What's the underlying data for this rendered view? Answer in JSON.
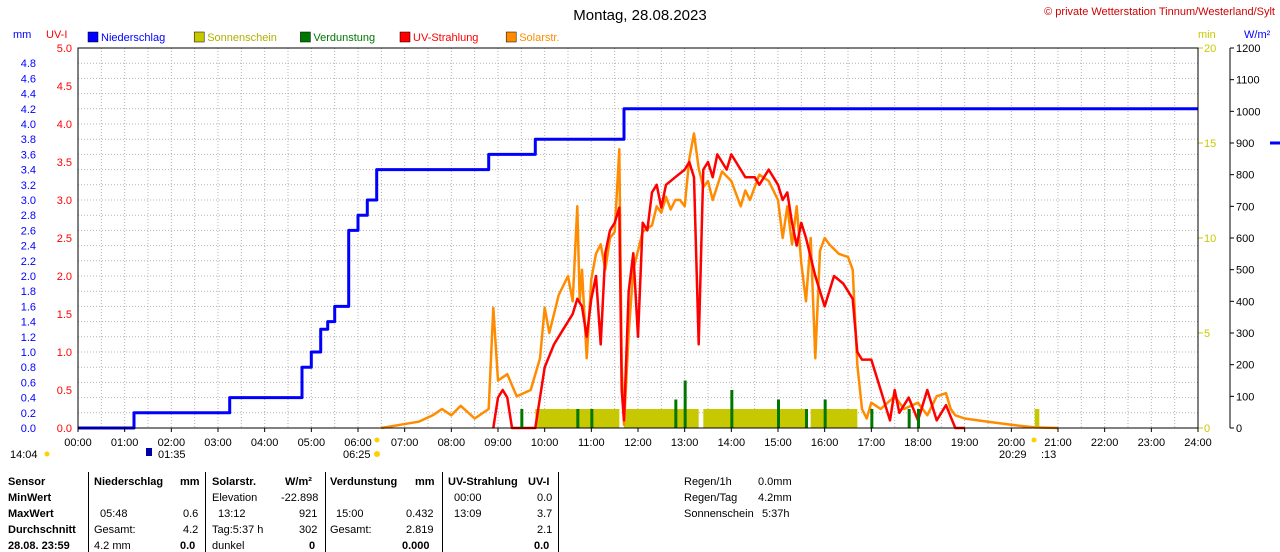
{
  "header": {
    "title": "Montag, 28.08.2023",
    "copyright": "© private Wetterstation Tinnum/Westerland/Sylt"
  },
  "legend": [
    {
      "label": "Niederschlag",
      "color": "#0000ff"
    },
    {
      "label": "Sonnenschein",
      "color": "#c8c800"
    },
    {
      "label": "Verdunstung",
      "color": "#007800"
    },
    {
      "label": "UV-Strahlung",
      "color": "#ff0000"
    },
    {
      "label": "Solarstr.",
      "color": "#ff8c00"
    }
  ],
  "axes": {
    "left_mm_unit": "mm",
    "left_uv_unit": "UV-I",
    "right_min_unit": "min",
    "right_w_unit": "W/m²",
    "x_ticks": [
      "00:00",
      "01:00",
      "02:00",
      "03:00",
      "04:00",
      "05:00",
      "06:00",
      "07:00",
      "08:00",
      "09:00",
      "10:00",
      "11:00",
      "12:00",
      "13:00",
      "14:00",
      "15:00",
      "16:00",
      "17:00",
      "18:00",
      "19:00",
      "20:00",
      "21:00",
      "22:00",
      "23:00",
      "24:00"
    ],
    "mm_ticks": [
      "0.0",
      "0.2",
      "0.4",
      "0.6",
      "0.8",
      "1.0",
      "1.2",
      "1.4",
      "1.6",
      "1.8",
      "2.0",
      "2.2",
      "2.4",
      "2.6",
      "2.8",
      "3.0",
      "3.2",
      "3.4",
      "3.6",
      "3.8",
      "4.0",
      "4.2",
      "4.4",
      "4.6",
      "4.8"
    ],
    "uv_ticks": [
      "0.0",
      "0.5",
      "1.0",
      "1.5",
      "2.0",
      "2.5",
      "3.0",
      "3.5",
      "4.0",
      "4.5",
      "5.0"
    ],
    "min_ticks": [
      "0",
      "5",
      "10",
      "15",
      "20"
    ],
    "w_ticks": [
      "0",
      "100",
      "200",
      "300",
      "400",
      "500",
      "600",
      "700",
      "800",
      "900",
      "1000",
      "1100",
      "1200"
    ],
    "sun_markers": {
      "moonrise": "14:04",
      "moonset": "01:35",
      "sunrise": "06:25",
      "sunset": "20:29",
      "sunset_suffix": ":13"
    }
  },
  "chart_data": {
    "type": "line",
    "x_unit": "hour of day",
    "xlim": [
      0,
      24
    ],
    "series": [
      {
        "name": "Niederschlag",
        "axis": "mm",
        "ylim": [
          0,
          5.0
        ],
        "color": "#0000ff",
        "step": [
          [
            0,
            0
          ],
          [
            1.2,
            0
          ],
          [
            1.2,
            0.2
          ],
          [
            3.25,
            0.2
          ],
          [
            3.25,
            0.4
          ],
          [
            4.8,
            0.4
          ],
          [
            4.8,
            0.8
          ],
          [
            5.0,
            0.8
          ],
          [
            5.0,
            1.0
          ],
          [
            5.2,
            1.0
          ],
          [
            5.2,
            1.3
          ],
          [
            5.35,
            1.3
          ],
          [
            5.35,
            1.4
          ],
          [
            5.5,
            1.4
          ],
          [
            5.5,
            1.6
          ],
          [
            5.8,
            1.6
          ],
          [
            5.8,
            2.6
          ],
          [
            6.0,
            2.6
          ],
          [
            6.0,
            2.8
          ],
          [
            6.2,
            2.8
          ],
          [
            6.2,
            3.0
          ],
          [
            6.4,
            3.0
          ],
          [
            6.4,
            3.4
          ],
          [
            8.8,
            3.4
          ],
          [
            8.8,
            3.6
          ],
          [
            9.8,
            3.6
          ],
          [
            9.8,
            3.8
          ],
          [
            11.7,
            3.8
          ],
          [
            11.7,
            4.2
          ],
          [
            24,
            4.2
          ]
        ]
      },
      {
        "name": "Solarstr.",
        "axis": "W/m²",
        "ylim": [
          0,
          1200
        ],
        "color": "#ff8c00",
        "points": [
          [
            6.5,
            0
          ],
          [
            6.9,
            10
          ],
          [
            7.3,
            20
          ],
          [
            7.6,
            40
          ],
          [
            7.8,
            60
          ],
          [
            8.0,
            40
          ],
          [
            8.2,
            70
          ],
          [
            8.5,
            30
          ],
          [
            8.8,
            60
          ],
          [
            8.9,
            380
          ],
          [
            9.0,
            150
          ],
          [
            9.2,
            170
          ],
          [
            9.4,
            100
          ],
          [
            9.7,
            120
          ],
          [
            9.9,
            220
          ],
          [
            10.0,
            380
          ],
          [
            10.1,
            300
          ],
          [
            10.3,
            420
          ],
          [
            10.5,
            480
          ],
          [
            10.6,
            400
          ],
          [
            10.7,
            700
          ],
          [
            10.75,
            400
          ],
          [
            10.8,
            500
          ],
          [
            10.9,
            220
          ],
          [
            11.0,
            470
          ],
          [
            11.1,
            550
          ],
          [
            11.2,
            580
          ],
          [
            11.3,
            500
          ],
          [
            11.4,
            600
          ],
          [
            11.5,
            620
          ],
          [
            11.6,
            880
          ],
          [
            11.65,
            200
          ],
          [
            11.7,
            10
          ],
          [
            11.8,
            300
          ],
          [
            11.9,
            500
          ],
          [
            12.0,
            560
          ],
          [
            12.1,
            620
          ],
          [
            12.3,
            640
          ],
          [
            12.4,
            700
          ],
          [
            12.5,
            680
          ],
          [
            12.6,
            730
          ],
          [
            12.7,
            690
          ],
          [
            12.8,
            720
          ],
          [
            12.9,
            720
          ],
          [
            13.0,
            700
          ],
          [
            13.1,
            850
          ],
          [
            13.2,
            930
          ],
          [
            13.3,
            820
          ],
          [
            13.4,
            760
          ],
          [
            13.5,
            780
          ],
          [
            13.6,
            720
          ],
          [
            13.8,
            810
          ],
          [
            14.0,
            780
          ],
          [
            14.2,
            700
          ],
          [
            14.3,
            750
          ],
          [
            14.4,
            720
          ],
          [
            14.6,
            800
          ],
          [
            14.8,
            780
          ],
          [
            15.0,
            720
          ],
          [
            15.1,
            600
          ],
          [
            15.2,
            700
          ],
          [
            15.3,
            580
          ],
          [
            15.4,
            700
          ],
          [
            15.5,
            520
          ],
          [
            15.6,
            400
          ],
          [
            15.7,
            600
          ],
          [
            15.8,
            220
          ],
          [
            15.9,
            560
          ],
          [
            16.0,
            600
          ],
          [
            16.1,
            580
          ],
          [
            16.3,
            550
          ],
          [
            16.5,
            540
          ],
          [
            16.6,
            500
          ],
          [
            16.7,
            200
          ],
          [
            16.8,
            60
          ],
          [
            16.9,
            30
          ],
          [
            17.0,
            80
          ],
          [
            17.2,
            60
          ],
          [
            17.5,
            100
          ],
          [
            17.7,
            60
          ],
          [
            18.0,
            80
          ],
          [
            18.2,
            40
          ],
          [
            18.4,
            100
          ],
          [
            18.6,
            110
          ],
          [
            18.7,
            60
          ],
          [
            18.8,
            40
          ],
          [
            19.0,
            30
          ],
          [
            19.5,
            20
          ],
          [
            20.0,
            10
          ],
          [
            20.5,
            2
          ],
          [
            21.0,
            0
          ]
        ]
      },
      {
        "name": "UV-Strahlung",
        "axis": "UV-I",
        "ylim": [
          0,
          5.0
        ],
        "color": "#ff0000",
        "points": [
          [
            8.9,
            0
          ],
          [
            9.0,
            0.4
          ],
          [
            9.1,
            0.5
          ],
          [
            9.2,
            0.4
          ],
          [
            9.3,
            0
          ],
          [
            9.8,
            0
          ],
          [
            9.9,
            0.4
          ],
          [
            10.0,
            0.8
          ],
          [
            10.2,
            1.1
          ],
          [
            10.4,
            1.3
          ],
          [
            10.6,
            1.5
          ],
          [
            10.7,
            1.7
          ],
          [
            10.8,
            1.6
          ],
          [
            10.9,
            1.2
          ],
          [
            11.0,
            1.7
          ],
          [
            11.1,
            2.0
          ],
          [
            11.2,
            1.1
          ],
          [
            11.3,
            2.3
          ],
          [
            11.4,
            2.6
          ],
          [
            11.5,
            2.7
          ],
          [
            11.6,
            2.9
          ],
          [
            11.65,
            0.5
          ],
          [
            11.7,
            0.1
          ],
          [
            11.8,
            1.8
          ],
          [
            11.9,
            2.3
          ],
          [
            12.0,
            1.2
          ],
          [
            12.1,
            2.7
          ],
          [
            12.2,
            2.6
          ],
          [
            12.3,
            3.1
          ],
          [
            12.4,
            3.2
          ],
          [
            12.5,
            2.9
          ],
          [
            12.6,
            3.2
          ],
          [
            12.8,
            3.3
          ],
          [
            13.0,
            3.4
          ],
          [
            13.1,
            3.5
          ],
          [
            13.2,
            3.3
          ],
          [
            13.3,
            1.1
          ],
          [
            13.4,
            3.4
          ],
          [
            13.5,
            3.5
          ],
          [
            13.6,
            3.3
          ],
          [
            13.7,
            3.6
          ],
          [
            13.8,
            3.5
          ],
          [
            13.9,
            3.4
          ],
          [
            14.0,
            3.6
          ],
          [
            14.1,
            3.5
          ],
          [
            14.3,
            3.3
          ],
          [
            14.5,
            3.3
          ],
          [
            14.6,
            3.2
          ],
          [
            14.8,
            3.4
          ],
          [
            15.0,
            3.2
          ],
          [
            15.1,
            3.0
          ],
          [
            15.2,
            3.1
          ],
          [
            15.3,
            2.7
          ],
          [
            15.4,
            2.4
          ],
          [
            15.5,
            2.7
          ],
          [
            15.6,
            2.5
          ],
          [
            15.8,
            2.0
          ],
          [
            15.9,
            1.8
          ],
          [
            16.0,
            1.6
          ],
          [
            16.2,
            2.0
          ],
          [
            16.4,
            1.9
          ],
          [
            16.5,
            1.8
          ],
          [
            16.6,
            1.7
          ],
          [
            16.7,
            1.0
          ],
          [
            16.8,
            0.9
          ],
          [
            17.0,
            0.9
          ],
          [
            17.1,
            0.7
          ],
          [
            17.2,
            0.5
          ],
          [
            17.3,
            0.3
          ],
          [
            17.4,
            0.1
          ],
          [
            17.5,
            0.5
          ],
          [
            17.6,
            0.2
          ],
          [
            17.8,
            0.4
          ],
          [
            18.0,
            0.1
          ],
          [
            18.2,
            0.5
          ],
          [
            18.4,
            0.1
          ],
          [
            18.6,
            0.3
          ],
          [
            18.8,
            0.0
          ],
          [
            19.0,
            0.0
          ]
        ]
      }
    ],
    "sonnenschein_blocks": [
      [
        9.8,
        11.6
      ],
      [
        11.7,
        13.3
      ],
      [
        13.4,
        15.6
      ],
      [
        15.7,
        16.7
      ]
    ],
    "sonnenschein_marker": [
      20.5,
      20.6
    ],
    "verdunstung_spikes": [
      [
        9.5,
        2
      ],
      [
        10.7,
        2
      ],
      [
        11.0,
        2
      ],
      [
        12.8,
        3
      ],
      [
        13.0,
        5
      ],
      [
        14.0,
        4
      ],
      [
        15.0,
        3
      ],
      [
        15.6,
        2
      ],
      [
        16.0,
        3
      ],
      [
        17.0,
        2
      ],
      [
        17.8,
        2
      ],
      [
        18.0,
        2
      ]
    ]
  },
  "table": {
    "sensor": {
      "header": "Sensor",
      "min": "MinWert",
      "max": "MaxWert",
      "avg": "Durchschnitt",
      "date": "28.08. 23:59"
    },
    "niederschlag": {
      "header": "Niederschlag",
      "unit": "mm",
      "max_time": "05:48",
      "max_val": "0.6",
      "total_label": "Gesamt:",
      "total_val": "4.2",
      "sum_left": "4.2 mm",
      "sum_right": "0.0"
    },
    "solar": {
      "header": "Solarstr.",
      "unit": "W/m²",
      "elev_label": "Elevation",
      "elev_val": "-22.898",
      "max_time": "13:12",
      "max_val": "921",
      "day_label": "Tag:5:37 h",
      "day_val": "302",
      "dark_label": "dunkel",
      "dark_val": "0"
    },
    "verdunstung": {
      "header": "Verdunstung",
      "unit": "mm",
      "max_time": "15:00",
      "max_val": "0.432",
      "total_label": "Gesamt:",
      "total_val": "2.819",
      "last_val": "0.000"
    },
    "uv": {
      "header": "UV-Strahlung",
      "unit": "UV-I",
      "min_time": "00:00",
      "min_val": "0.0",
      "max_time": "13:09",
      "max_val": "3.7",
      "avg_val": "2.1",
      "last_val": "0.0"
    },
    "summary": {
      "rain_1h_label": "Regen/1h",
      "rain_1h_val": "0.0mm",
      "rain_day_label": "Regen/Tag",
      "rain_day_val": "4.2mm",
      "sun_label": "Sonnenschein",
      "sun_val": "5:37h"
    }
  }
}
